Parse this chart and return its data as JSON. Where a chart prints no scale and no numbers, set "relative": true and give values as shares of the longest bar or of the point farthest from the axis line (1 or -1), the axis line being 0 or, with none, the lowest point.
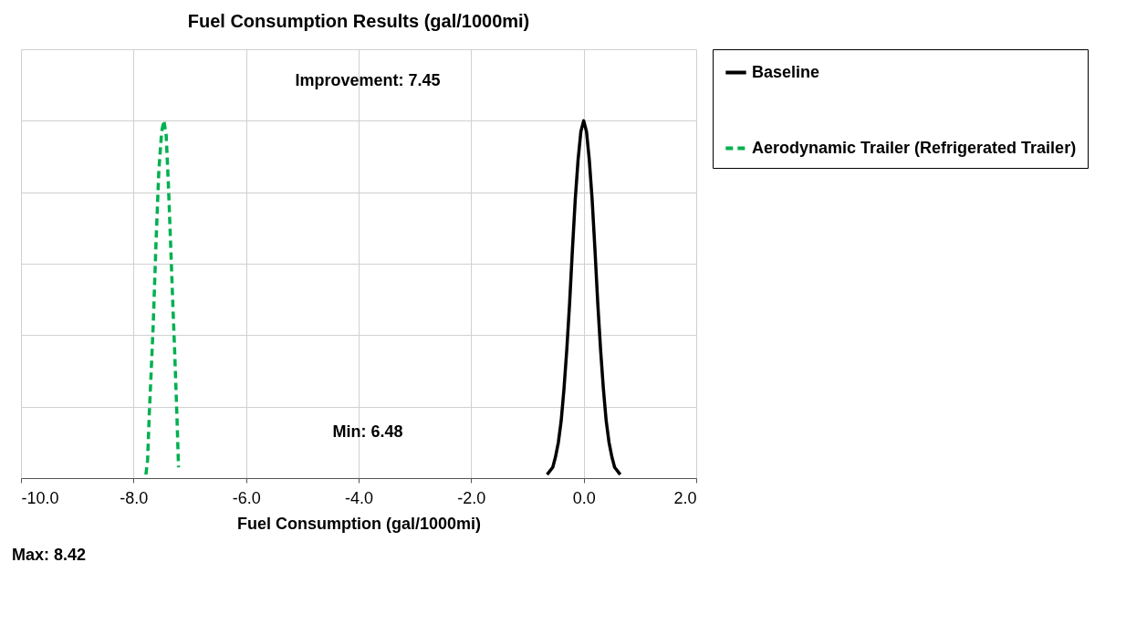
{
  "chart_data": {
    "type": "line",
    "title": "Fuel Consumption Results  (gal/1000mi)",
    "xlabel": "Fuel Consumption (gal/1000mi)",
    "relative": true,
    "grid": true,
    "legend": "right",
    "marker": "none",
    "xlim": [
      -10,
      2
    ],
    "xticks": [
      {
        "value": -10,
        "label": "-10.0"
      },
      {
        "value": -8,
        "label": "-8.0"
      },
      {
        "value": -6,
        "label": "-6.0"
      },
      {
        "value": -4,
        "label": "-4.0"
      },
      {
        "value": -2,
        "label": "-2.0"
      },
      {
        "value": 0,
        "label": "0.0"
      },
      {
        "value": 2,
        "label": "2.0"
      }
    ],
    "series": [
      {
        "name": "Baseline",
        "color": "#000000",
        "line_style": "solid",
        "x": [
          -0.65,
          -0.6,
          -0.55,
          -0.5,
          -0.45,
          -0.4,
          -0.35,
          -0.3,
          -0.25,
          -0.2,
          -0.15,
          -0.1,
          -0.05,
          0,
          0.05,
          0.1,
          0.15,
          0.2,
          0.25,
          0.3,
          0.35,
          0.4,
          0.45,
          0.5,
          0.55,
          0.6,
          0.65
        ],
        "values": [
          0.01,
          0.02,
          0.03,
          0.06,
          0.1,
          0.16,
          0.25,
          0.36,
          0.49,
          0.64,
          0.78,
          0.89,
          0.97,
          1,
          0.97,
          0.89,
          0.78,
          0.64,
          0.49,
          0.36,
          0.25,
          0.16,
          0.1,
          0.06,
          0.03,
          0.02,
          0.01
        ]
      },
      {
        "name": "Aerodynamic Trailer (Refrigerated Trailer)",
        "color": "#00b050",
        "line_style": "dashed",
        "x": [
          -7.78,
          -7.75,
          -7.72,
          -7.68,
          -7.65,
          -7.6,
          -7.55,
          -7.5,
          -7.46,
          -7.42,
          -7.38,
          -7.33,
          -7.3,
          -7.27,
          -7.23,
          -7.2
        ],
        "values": [
          0.01,
          0.05,
          0.18,
          0.32,
          0.43,
          0.66,
          0.86,
          0.97,
          1,
          0.96,
          0.82,
          0.61,
          0.48,
          0.36,
          0.18,
          0.03
        ]
      }
    ],
    "annotations": [
      "Improvement: 7.45",
      "Min: 6.48",
      "Max: 8.42"
    ]
  }
}
